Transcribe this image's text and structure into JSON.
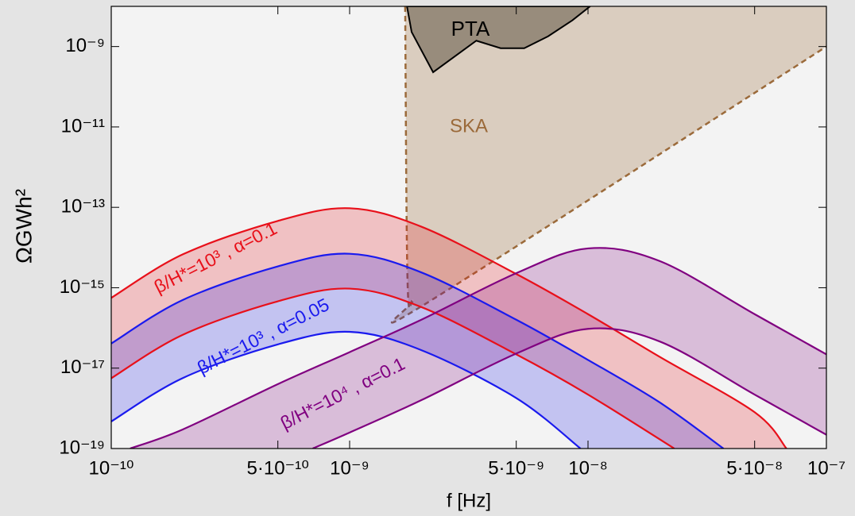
{
  "chart_data": {
    "type": "line",
    "log_x": true,
    "log_y": true,
    "x_label": "f [Hz]",
    "y_label": "ΩGWh²",
    "xlim": [
      1e-10,
      1e-07
    ],
    "ylim": [
      1e-19,
      1e-08
    ],
    "xticks": [
      {
        "value": 1e-10,
        "label": "10⁻¹⁰"
      },
      {
        "value": 5e-10,
        "label": "5·10⁻¹⁰"
      },
      {
        "value": 1e-09,
        "label": "10⁻⁹"
      },
      {
        "value": 5e-09,
        "label": "5·10⁻⁹"
      },
      {
        "value": 1e-08,
        "label": "10⁻⁸"
      },
      {
        "value": 5e-08,
        "label": "5·10⁻⁸"
      },
      {
        "value": 1e-07,
        "label": "10⁻⁷"
      }
    ],
    "yticks": [
      {
        "value": 1e-19,
        "label": "10⁻¹⁹"
      },
      {
        "value": 1e-17,
        "label": "10⁻¹⁷"
      },
      {
        "value": 1e-15,
        "label": "10⁻¹⁵"
      },
      {
        "value": 1e-13,
        "label": "10⁻¹³"
      },
      {
        "value": 1e-11,
        "label": "10⁻¹¹"
      },
      {
        "value": 1e-09,
        "label": "10⁻⁹"
      }
    ],
    "series": [
      {
        "color": "#e8101a",
        "x": [
          1e-10,
          2e-10,
          5e-10,
          1e-09,
          2e-09,
          5e-09,
          1e-08,
          2e-08,
          5e-08,
          6.8e-08
        ],
        "values": [
          5.6e-16,
          6.8e-15,
          4.6e-14,
          9.5e-14,
          3.3e-14,
          2.2e-15,
          2.2e-16,
          1.9e-17,
          8e-19,
          1e-19
        ]
      },
      {
        "color": "#e8101a",
        "x": [
          1e-10,
          2e-10,
          5e-10,
          1e-09,
          2e-09,
          5e-09,
          1e-08,
          2.3e-08
        ],
        "values": [
          5.6e-18,
          6.8e-17,
          4.6e-16,
          9.5e-16,
          3.3e-16,
          2.2e-17,
          2.2e-18,
          1e-19
        ]
      },
      {
        "color": "#1a1aee",
        "x": [
          1e-10,
          2e-10,
          5e-10,
          1e-09,
          2e-09,
          5e-09,
          1e-08,
          2e-08,
          3.7e-08
        ],
        "values": [
          4.1e-17,
          5e-16,
          3.4e-15,
          7e-15,
          2.4e-15,
          1.6e-16,
          1.6e-17,
          1.4e-18,
          1e-19
        ]
      },
      {
        "color": "#1a1aee",
        "x": [
          1e-10,
          2e-10,
          5e-10,
          1e-09,
          2e-09,
          5e-09,
          9.3e-09
        ],
        "values": [
          4.7e-19,
          5.7e-18,
          3.9e-17,
          8e-17,
          2.8e-17,
          1.8e-18,
          1e-19
        ]
      },
      {
        "color": "#800080",
        "x": [
          1.2e-10,
          2e-10,
          5e-10,
          1e-09,
          2e-09,
          5e-09,
          1e-08,
          2e-08,
          5e-08,
          1e-07
        ],
        "values": [
          1e-19,
          3e-19,
          4e-18,
          2.5e-17,
          1.6e-16,
          2.3e-15,
          9.5e-15,
          4.6e-15,
          2.2e-16,
          2.2e-17
        ]
      },
      {
        "color": "#800080",
        "x": [
          7e-10,
          1e-09,
          2e-09,
          5e-09,
          1e-08,
          2e-08,
          5e-08,
          1e-07
        ],
        "values": [
          1e-19,
          2.5e-19,
          1.6e-18,
          2.3e-17,
          9.5e-17,
          4.6e-17,
          2.2e-18,
          2.2e-19
        ]
      }
    ],
    "regions": [
      {
        "name": "PTA",
        "color": "#8c8070",
        "x": [
          1.74e-09,
          1.82e-09,
          2.24e-09,
          3.4e-09,
          4.3e-09,
          5.4e-09,
          6.8e-09,
          8.6e-09,
          1.02e-08
        ],
        "values": [
          1e-08,
          2.3e-09,
          2.3e-10,
          1.4e-09,
          9.1e-10,
          9.1e-10,
          1.8e-09,
          4.5e-09,
          1e-08
        ]
      },
      {
        "name": "SKA",
        "color": "#9b6a3a",
        "x": [
          1.71e-09,
          1.75e-09,
          1.85e-09,
          2.07e-09,
          1e-07
        ],
        "values": [
          1e-08,
          1.4e-15,
          5e-16,
          3.9e-16,
          1e-09
        ]
      }
    ],
    "annotations": [
      {
        "text": "β/H*=10³ , α=0.1",
        "color": "#e8101a"
      },
      {
        "text": "β/H*=10³ , α=0.05",
        "color": "#1a1aee"
      },
      {
        "text": "β/H*=10⁴ , α=0.1",
        "color": "#800080"
      }
    ]
  }
}
